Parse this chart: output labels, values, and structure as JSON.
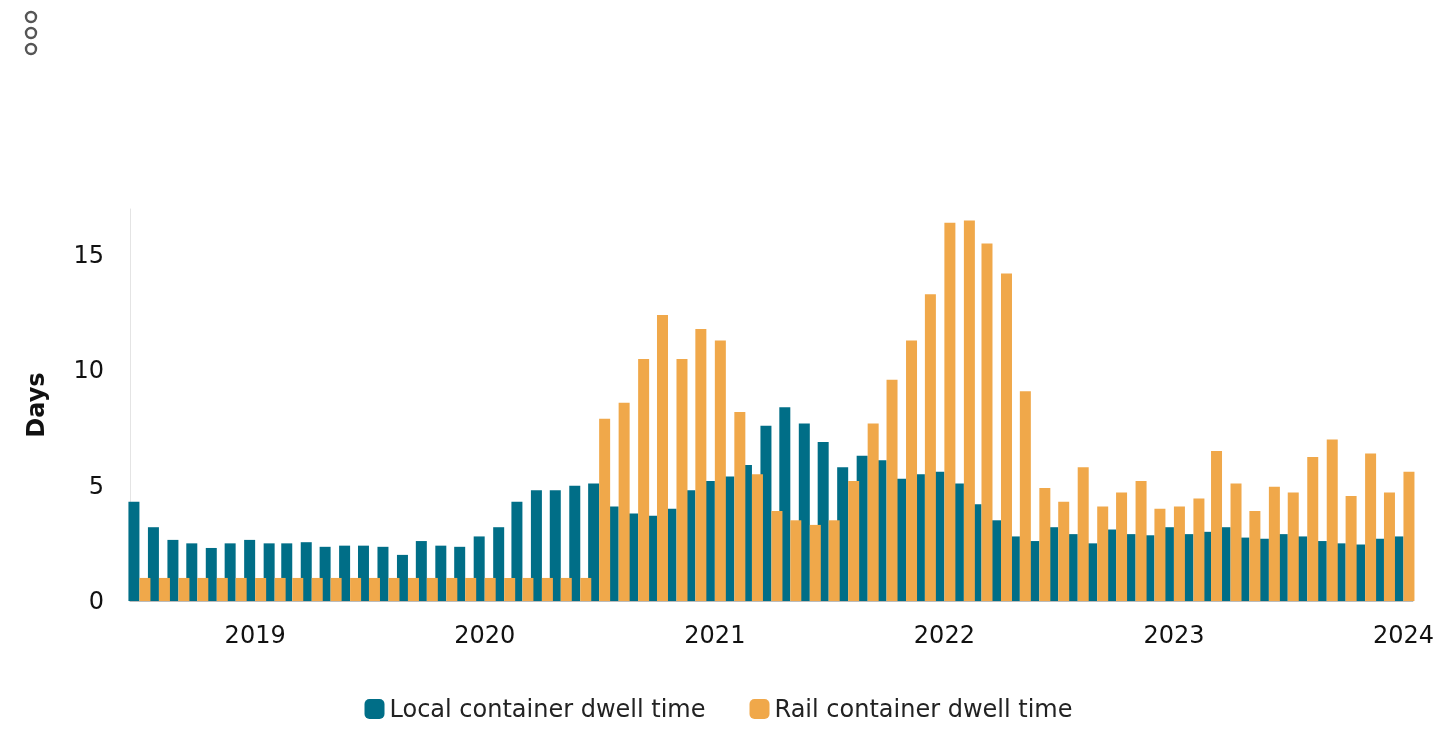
{
  "chart_data": {
    "type": "bar",
    "ylabel": "Days",
    "x": [
      "2018-07",
      "2018-08",
      "2018-09",
      "2018-10",
      "2018-11",
      "2018-12",
      "2019-01",
      "2019-02",
      "2019-03",
      "2019-04",
      "2019-05",
      "2019-06",
      "2019-07",
      "2019-08",
      "2019-09",
      "2019-10",
      "2019-11",
      "2019-12",
      "2020-01",
      "2020-02",
      "2020-03",
      "2020-04",
      "2020-05",
      "2020-06",
      "2020-07",
      "2020-08",
      "2020-09",
      "2020-10",
      "2020-11",
      "2020-12",
      "2021-01",
      "2021-02",
      "2021-03",
      "2021-04",
      "2021-05",
      "2021-06",
      "2021-07",
      "2021-08",
      "2021-09",
      "2021-10",
      "2021-11",
      "2021-12",
      "2022-01",
      "2022-02",
      "2022-03",
      "2022-04",
      "2022-05",
      "2022-06",
      "2022-07",
      "2022-08",
      "2022-09",
      "2022-10",
      "2022-11",
      "2022-12",
      "2023-01",
      "2023-02",
      "2023-03",
      "2023-04",
      "2023-05",
      "2023-06",
      "2023-07",
      "2023-08",
      "2023-09",
      "2023-10",
      "2023-11",
      "2023-12",
      "2024-01"
    ],
    "series": [
      {
        "name": "Local container dwell time",
        "color": "#006e87",
        "values": [
          4.3,
          3.2,
          2.65,
          2.5,
          2.3,
          2.5,
          2.65,
          2.5,
          2.5,
          2.55,
          2.35,
          2.4,
          2.4,
          2.35,
          2.0,
          2.6,
          2.4,
          2.35,
          2.8,
          3.2,
          4.3,
          4.8,
          4.8,
          5.0,
          5.1,
          4.1,
          3.8,
          3.7,
          4.0,
          4.8,
          5.2,
          5.4,
          5.9,
          7.6,
          8.4,
          7.7,
          6.9,
          5.8,
          6.3,
          6.1,
          5.3,
          5.5,
          5.6,
          5.1,
          4.2,
          3.5,
          2.8,
          2.6,
          3.2,
          2.9,
          2.5,
          3.1,
          2.9,
          2.85,
          3.2,
          2.9,
          3.0,
          3.2,
          2.75,
          2.7,
          2.9,
          2.8,
          2.6,
          2.5,
          2.45,
          2.7,
          2.8
        ]
      },
      {
        "name": "Rail container dwell time",
        "color": "#f0a84a",
        "values": [
          1.0,
          1.0,
          1.0,
          1.0,
          1.0,
          1.0,
          1.0,
          1.0,
          1.0,
          1.0,
          1.0,
          1.0,
          1.0,
          1.0,
          1.0,
          1.0,
          1.0,
          1.0,
          1.0,
          1.0,
          1.0,
          1.0,
          1.0,
          1.0,
          7.9,
          8.6,
          10.5,
          12.4,
          10.5,
          11.8,
          11.3,
          8.2,
          5.5,
          3.9,
          3.5,
          3.3,
          3.5,
          5.2,
          7.7,
          9.6,
          11.3,
          13.3,
          16.4,
          16.5,
          15.5,
          14.2,
          9.1,
          4.9,
          4.3,
          5.8,
          4.1,
          4.7,
          5.2,
          4.0,
          4.1,
          4.45,
          6.5,
          5.1,
          3.9,
          4.95,
          4.7,
          6.25,
          7.0,
          4.55,
          6.4,
          4.7,
          5.6
        ]
      }
    ],
    "ylim": [
      0,
      17
    ],
    "yticks": [
      0,
      5,
      10,
      15
    ],
    "xlim": [
      "2018-06-16",
      "2024-01-16"
    ],
    "xticks": [
      "2019",
      "2020",
      "2021",
      "2022",
      "2023",
      "2024"
    ],
    "grid": false,
    "legend": "bottom"
  }
}
